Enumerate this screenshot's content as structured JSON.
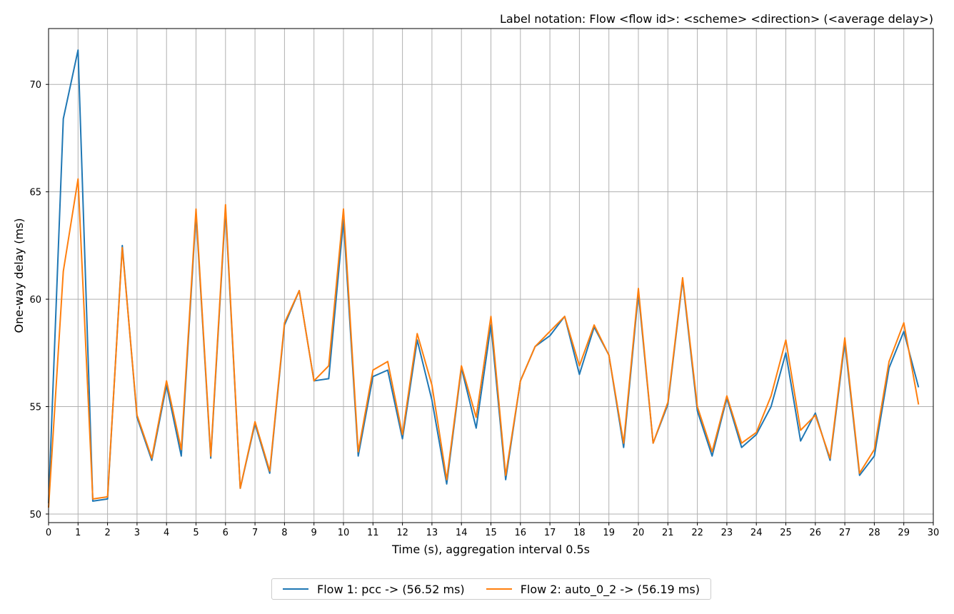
{
  "chart_data": {
    "type": "line",
    "title": "Label notation: Flow <flow id>: <scheme> <direction> (<average delay>)",
    "xlabel": "Time (s), aggregation interval 0.5s",
    "ylabel": "One-way delay (ms)",
    "xlim": [
      0,
      30
    ],
    "ylim": [
      49.6,
      72.6
    ],
    "xticks": [
      "0",
      "1",
      "2",
      "3",
      "4",
      "5",
      "6",
      "7",
      "8",
      "9",
      "10",
      "11",
      "12",
      "13",
      "14",
      "15",
      "16",
      "17",
      "18",
      "19",
      "20",
      "21",
      "22",
      "23",
      "24",
      "25",
      "26",
      "27",
      "28",
      "29",
      "30"
    ],
    "yticks": [
      "50",
      "55",
      "60",
      "65",
      "70"
    ],
    "grid": true,
    "legend_position": "bottom-center",
    "x": [
      0,
      0.5,
      1,
      1.5,
      2,
      2.5,
      3,
      3.5,
      4,
      4.5,
      5,
      5.5,
      6,
      6.5,
      7,
      7.5,
      8,
      8.5,
      9,
      9.5,
      10,
      10.5,
      11,
      11.5,
      12,
      12.5,
      13,
      13.5,
      14,
      14.5,
      15,
      15.5,
      16,
      16.5,
      17,
      17.5,
      18,
      18.5,
      19,
      19.5,
      20,
      20.5,
      21,
      21.5,
      22,
      22.5,
      23,
      23.5,
      24,
      24.5,
      25,
      25.5,
      26,
      26.5,
      27,
      27.5,
      28,
      28.5,
      29,
      29.5
    ],
    "series": [
      {
        "name": "Flow 1: pcc -> (56.52 ms)",
        "color": "#1f77b4",
        "values": [
          50.5,
          68.4,
          71.6,
          50.6,
          50.7,
          62.5,
          54.5,
          52.5,
          56.0,
          52.7,
          64.0,
          52.6,
          64.2,
          51.2,
          54.2,
          51.9,
          58.8,
          60.4,
          56.2,
          56.3,
          63.7,
          52.7,
          56.4,
          56.7,
          53.5,
          58.1,
          55.3,
          51.4,
          56.8,
          54.0,
          58.8,
          51.6,
          56.2,
          57.8,
          58.3,
          59.2,
          56.5,
          58.7,
          57.4,
          53.1,
          60.3,
          53.3,
          55.1,
          60.9,
          54.8,
          52.7,
          55.4,
          53.1,
          53.7,
          55.0,
          57.5,
          53.4,
          54.7,
          52.5,
          58.0,
          51.8,
          52.7,
          56.8,
          58.5,
          55.9
        ]
      },
      {
        "name": "Flow 2: auto_0_2 -> (56.19 ms)",
        "color": "#ff7f0e",
        "values": [
          50.3,
          61.3,
          65.6,
          50.7,
          50.8,
          62.4,
          54.6,
          52.6,
          56.2,
          53.0,
          64.2,
          52.7,
          64.4,
          51.2,
          54.3,
          52.0,
          58.9,
          60.4,
          56.2,
          56.9,
          64.2,
          52.9,
          56.7,
          57.1,
          53.7,
          58.4,
          56.0,
          51.6,
          56.9,
          54.5,
          59.2,
          51.8,
          56.2,
          57.8,
          58.5,
          59.2,
          56.9,
          58.8,
          57.4,
          53.3,
          60.5,
          53.3,
          55.2,
          61.0,
          55.0,
          52.9,
          55.5,
          53.3,
          53.8,
          55.5,
          58.1,
          53.9,
          54.6,
          52.6,
          58.2,
          51.9,
          53.0,
          57.1,
          58.9,
          55.1
        ]
      }
    ]
  }
}
